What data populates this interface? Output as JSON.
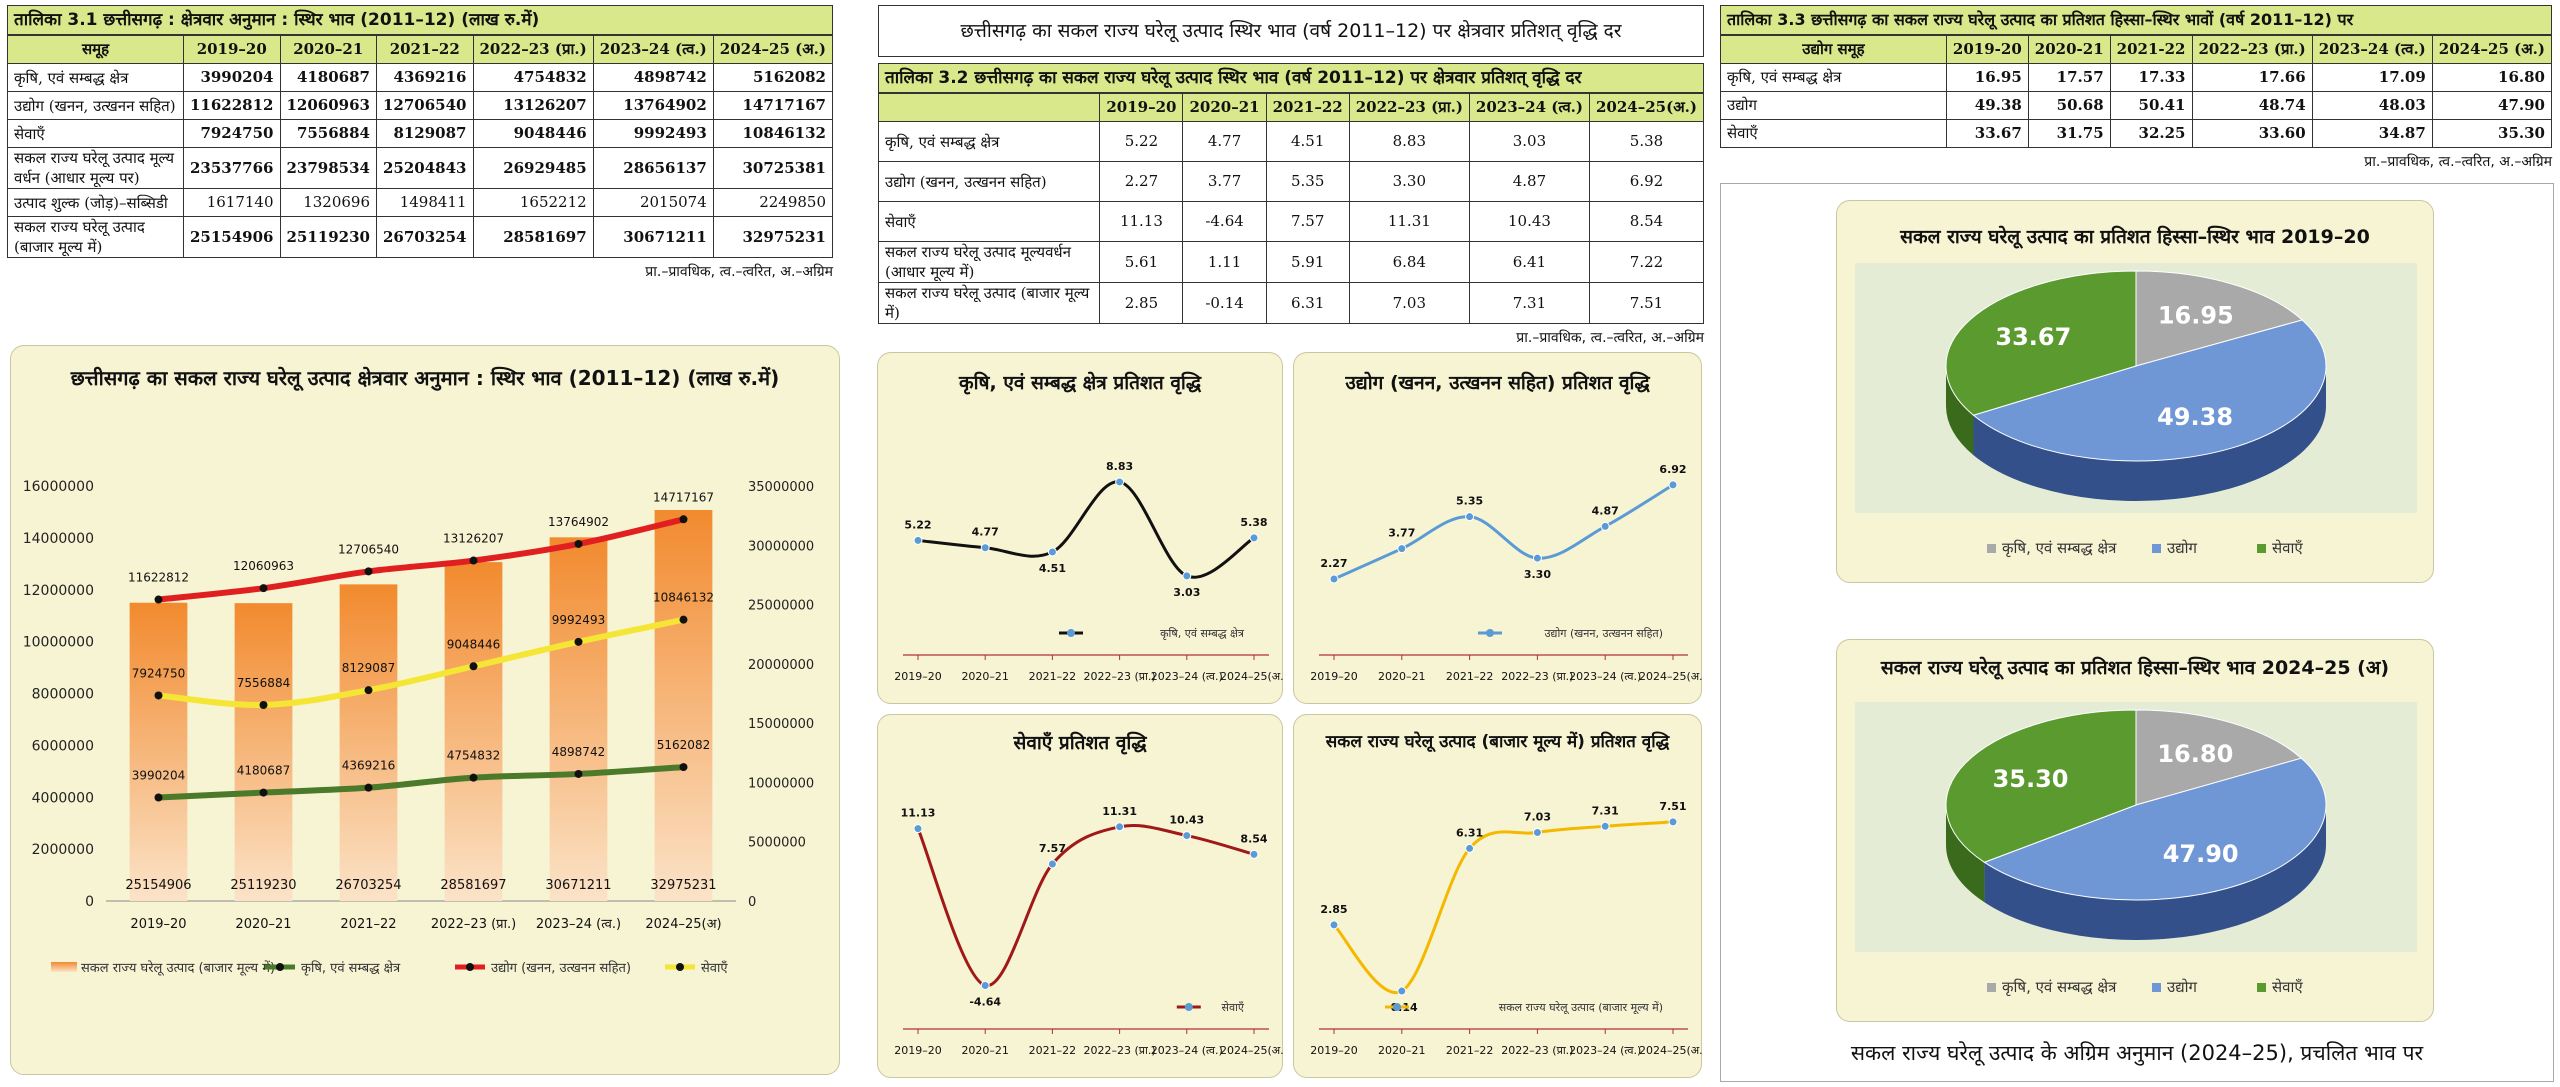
{
  "table31": {
    "title": "तालिका 3.1 छत्तीसगढ़ : क्षेत्रवार  अनुमान : स्थिर भाव (2011–12) (लाख रु.में)",
    "headers": [
      "समूह",
      "2019–20",
      "2020–21",
      "2021–22",
      "2022–23 (प्रा.)",
      "2023–24 (त्व.)",
      "2024–25 (अ.)"
    ],
    "rows": [
      {
        "label": "कृषि, एवं सम्बद्ध क्षेत्र",
        "values": [
          "3990204",
          "4180687",
          "4369216",
          "4754832",
          "4898742",
          "5162082"
        ]
      },
      {
        "label": "उद्योग (खनन, उत्खनन सहित)",
        "values": [
          "11622812",
          "12060963",
          "12706540",
          "13126207",
          "13764902",
          "14717167"
        ]
      },
      {
        "label": "सेवाएँ",
        "values": [
          "7924750",
          "7556884",
          "8129087",
          "9048446",
          "9992493",
          "10846132"
        ]
      },
      {
        "label": "सकल राज्य घरेलू उत्पाद मूल्य वर्धन (आधार मूल्य पर)",
        "values": [
          "23537766",
          "23798534",
          "25204843",
          "26929485",
          "28656137",
          "30725381"
        ]
      },
      {
        "label": "उत्पाद शुल्क (जोड़)–सब्सिडी",
        "values": [
          "1617140",
          "1320696",
          "1498411",
          "1652212",
          "2015074",
          "2249850"
        ]
      },
      {
        "label": "सकल राज्य घरेलू उत्पाद (बाजार मूल्य में)",
        "values": [
          "25154906",
          "25119230",
          "26703254",
          "28581697",
          "30671211",
          "32975231"
        ]
      }
    ],
    "note": "प्रा.–प्रावधिक, त्व.–त्वरित, अ.–अग्रिम"
  },
  "table32": {
    "heading": "छत्तीसगढ़ का सकल राज्य घरेलू उत्पाद स्थिर भाव (वर्ष 2011–12) पर क्षेत्रवार प्रतिशत् वृद्धि दर",
    "title": "तालिका 3.2 छत्तीसगढ़ का सकल राज्य घरेलू उत्पाद स्थिर भाव (वर्ष 2011–12) पर क्षेत्रवार प्रतिशत् वृद्धि दर",
    "headers": [
      "2019–20",
      "2020–21",
      "2021–22",
      "2022–23 (प्रा.)",
      "2023–24 (त्व.)",
      "2024–25(अ.)"
    ],
    "rows": [
      {
        "label": "कृषि, एवं सम्बद्ध क्षेत्र",
        "values": [
          "5.22",
          "4.77",
          "4.51",
          "8.83",
          "3.03",
          "5.38"
        ]
      },
      {
        "label": "उद्योग (खनन, उत्खनन सहित)",
        "values": [
          "2.27",
          "3.77",
          "5.35",
          "3.30",
          "4.87",
          "6.92"
        ]
      },
      {
        "label": "सेवाएँ",
        "values": [
          "11.13",
          "-4.64",
          "7.57",
          "11.31",
          "10.43",
          "8.54"
        ]
      },
      {
        "label": "सकल राज्य घरेलू उत्पाद मूल्यवर्धन (आधार मूल्य में)",
        "values": [
          "5.61",
          "1.11",
          "5.91",
          "6.84",
          "6.41",
          "7.22"
        ]
      },
      {
        "label": "सकल राज्य घरेलू उत्पाद (बाजार मूल्य में)",
        "values": [
          "2.85",
          "-0.14",
          "6.31",
          "7.03",
          "7.31",
          "7.51"
        ]
      }
    ],
    "note": "प्रा.–प्रावधिक, त्व.–त्वरित, अ.–अग्रिम"
  },
  "table33": {
    "title": "तालिका 3.3 छत्तीसगढ़ का सकल राज्य घरेलू उत्पाद का प्रतिशत हिस्सा–स्थिर भावों (वर्ष 2011–12) पर",
    "headers": [
      "उद्योग समूह",
      "2019-20",
      "2020-21",
      "2021-22",
      "2022–23 (प्रा.)",
      "2023–24 (त्व.)",
      "2024–25 (अ.)"
    ],
    "rows": [
      {
        "label": "कृषि, एवं सम्बद्ध क्षेत्र",
        "values": [
          "16.95",
          "17.57",
          "17.33",
          "17.66",
          "17.09",
          "16.80"
        ]
      },
      {
        "label": "उद्योग",
        "values": [
          "49.38",
          "50.68",
          "50.41",
          "48.74",
          "48.03",
          "47.90"
        ]
      },
      {
        "label": "सेवाएँ",
        "values": [
          "33.67",
          "31.75",
          "32.25",
          "33.60",
          "34.87",
          "35.30"
        ]
      }
    ],
    "note": "प्रा.–प्रावधिक, त्व.–त्वरित, अ.–अग्रिम"
  },
  "footer": "सकल राज्य घरेलू उत्पाद के अग्रिम अनुमान (2024–25), प्रचलित भाव पर",
  "colors": {
    "header_bg": "#d9e88a",
    "panel_bg": "#f7f4d4",
    "bar": "#f39c43",
    "agri": "#4a7a2a",
    "industry": "#e02020",
    "services": "#f5e534",
    "line_blue": "#5b9bd5",
    "pie_green": "#5a9a2e",
    "pie_blue": "#6f97d6",
    "pie_gray": "#a9a9a9"
  },
  "chart_data": [
    {
      "type": "bar",
      "title": "छत्तीसगढ़ का सकल राज्य घरेलू उत्पाद क्षेत्रवार अनुमान : स्थिर भाव (2011–12) (लाख रु.में)",
      "categories": [
        "2019–20",
        "2020–21",
        "2021–22",
        "2022–23 (प्रा.)",
        "2023–24 (त्व.)",
        "2024–25(अ)"
      ],
      "left_axis": {
        "ylim": [
          0,
          16000000
        ],
        "ticks": [
          "0",
          "2000000",
          "4000000",
          "6000000",
          "8000000",
          "10000000",
          "12000000",
          "14000000",
          "16000000"
        ]
      },
      "right_axis": {
        "ylim": [
          0,
          35000000
        ],
        "ticks": [
          "0",
          "5000000",
          "10000000",
          "15000000",
          "20000000",
          "25000000",
          "30000000",
          "35000000"
        ]
      },
      "series": [
        {
          "name": "सकल राज्य घरेलू उत्पाद (बाजार मूल्य में)",
          "kind": "bar",
          "axis": "right",
          "values": [
            25154906,
            25119230,
            26703254,
            28581697,
            30671211,
            32975231
          ],
          "labels": [
            "25154906",
            "25119230",
            "26703254",
            "28581697",
            "30671211",
            "32975231"
          ]
        },
        {
          "name": "कृषि, एवं सम्बद्ध क्षेत्र",
          "kind": "line",
          "axis": "left",
          "values": [
            3990204,
            4180687,
            4369216,
            4754832,
            4898742,
            5162082
          ],
          "labels": [
            "3990204",
            "4180687",
            "4369216",
            "4754832",
            "4898742",
            "5162082"
          ]
        },
        {
          "name": "उद्योग (खनन, उत्खनन सहित)",
          "kind": "line",
          "axis": "left",
          "values": [
            11622812,
            12060963,
            12706540,
            13126207,
            13764902,
            14717167
          ],
          "labels": [
            "11622812",
            "12060963",
            "12706540",
            "13126207",
            "13764902",
            "14717167"
          ]
        },
        {
          "name": "सेवाएँ",
          "kind": "line",
          "axis": "left",
          "values": [
            7924750,
            7556884,
            8129087,
            9048446,
            9992493,
            10846132
          ],
          "labels": [
            "7924750",
            "7556884",
            "8129087",
            "9048446",
            "9992493",
            "10846132"
          ]
        }
      ],
      "legend": "bottom"
    },
    {
      "type": "line",
      "title": "कृषि, एवं सम्बद्ध क्षेत्र प्रतिशत वृद्धि",
      "categories": [
        "2019–20",
        "2020–21",
        "2021–22",
        "2022–23 (प्रा.)",
        "2023–24 (त्व.)",
        "2024–25(अ.)"
      ],
      "series": [
        {
          "name": "कृषि, एवं सम्बद्ध क्षेत्र",
          "values": [
            5.22,
            4.77,
            4.51,
            8.83,
            3.03,
            5.38
          ],
          "labels": [
            "5.22",
            "4.77",
            "4.51",
            "8.83",
            "3.03",
            "5.38"
          ]
        }
      ],
      "line_color": "#111111",
      "ylim": [
        0,
        10
      ],
      "legend": "bottom-right"
    },
    {
      "type": "line",
      "title": "उद्योग (खनन, उत्खनन सहित) प्रतिशत वृद्धि",
      "categories": [
        "2019–20",
        "2020–21",
        "2021–22",
        "2022–23 (प्रा.)",
        "2023–24 (त्व.)",
        "2024–25(अ.)"
      ],
      "series": [
        {
          "name": "उद्योग (खनन, उत्खनन सहित)",
          "values": [
            2.27,
            3.77,
            5.35,
            3.3,
            4.87,
            6.92
          ],
          "labels": [
            "2.27",
            "3.77",
            "5.35",
            "3.30",
            "4.87",
            "6.92"
          ]
        }
      ],
      "line_color": "#5b9bd5",
      "ylim": [
        0,
        8
      ],
      "legend": "bottom-right"
    },
    {
      "type": "line",
      "title": "सेवाएँ प्रतिशत वृद्धि",
      "categories": [
        "2019–20",
        "2020–21",
        "2021–22",
        "2022–23 (प्रा.)",
        "2023–24 (त्व.)",
        "2024–25(अ.)"
      ],
      "series": [
        {
          "name": "सेवाएँ",
          "values": [
            11.13,
            -4.64,
            7.57,
            11.31,
            10.43,
            8.54
          ],
          "labels": [
            "11.13",
            "-4.64",
            "7.57",
            "11.31",
            "10.43",
            "8.54"
          ]
        }
      ],
      "line_color": "#a01818",
      "ylim": [
        -6,
        13
      ],
      "legend": "bottom-right"
    },
    {
      "type": "line",
      "title": "सकल राज्य घरेलू उत्पाद (बाजार मूल्य में) प्रतिशत वृद्धि",
      "categories": [
        "2019–20",
        "2020–21",
        "2021–22",
        "2022–23 (प्रा.)",
        "2023–24 (त्व.)",
        "2024–25(अ.)"
      ],
      "series": [
        {
          "name": "सकल राज्य घरेलू उत्पाद (बाजार मूल्य में)",
          "values": [
            2.85,
            -0.14,
            6.31,
            7.03,
            7.31,
            7.51
          ],
          "labels": [
            "2.85",
            "-0.14",
            "6.31",
            "7.03",
            "7.31",
            "7.51"
          ]
        }
      ],
      "line_color": "#f5b800",
      "ylim": [
        -0.5,
        8.5
      ],
      "legend": "bottom-right"
    },
    {
      "type": "pie",
      "title": "सकल राज्य घरेलू उत्पाद का प्रतिशत हिस्सा–स्थिर भाव 2019–20",
      "slices": [
        {
          "name": "कृषि, एवं सम्बद्ध क्षेत्र",
          "value": 16.95,
          "label": "16.95",
          "color": "#a9a9a9"
        },
        {
          "name": "उद्योग",
          "value": 49.38,
          "label": "49.38",
          "color": "#6f97d6"
        },
        {
          "name": "सेवाएँ",
          "value": 33.67,
          "label": "33.67",
          "color": "#5a9a2e"
        }
      ],
      "legend": "bottom"
    },
    {
      "type": "pie",
      "title": "सकल राज्य घरेलू उत्पाद का प्रतिशत हिस्सा–स्थिर भाव 2024–25 (अ)",
      "slices": [
        {
          "name": "कृषि, एवं सम्बद्ध क्षेत्र",
          "value": 16.8,
          "label": "16.80",
          "color": "#a9a9a9"
        },
        {
          "name": "उद्योग",
          "value": 47.9,
          "label": "47.90",
          "color": "#6f97d6"
        },
        {
          "name": "सेवाएँ",
          "value": 35.3,
          "label": "35.30",
          "color": "#5a9a2e"
        }
      ],
      "legend": "bottom"
    }
  ]
}
